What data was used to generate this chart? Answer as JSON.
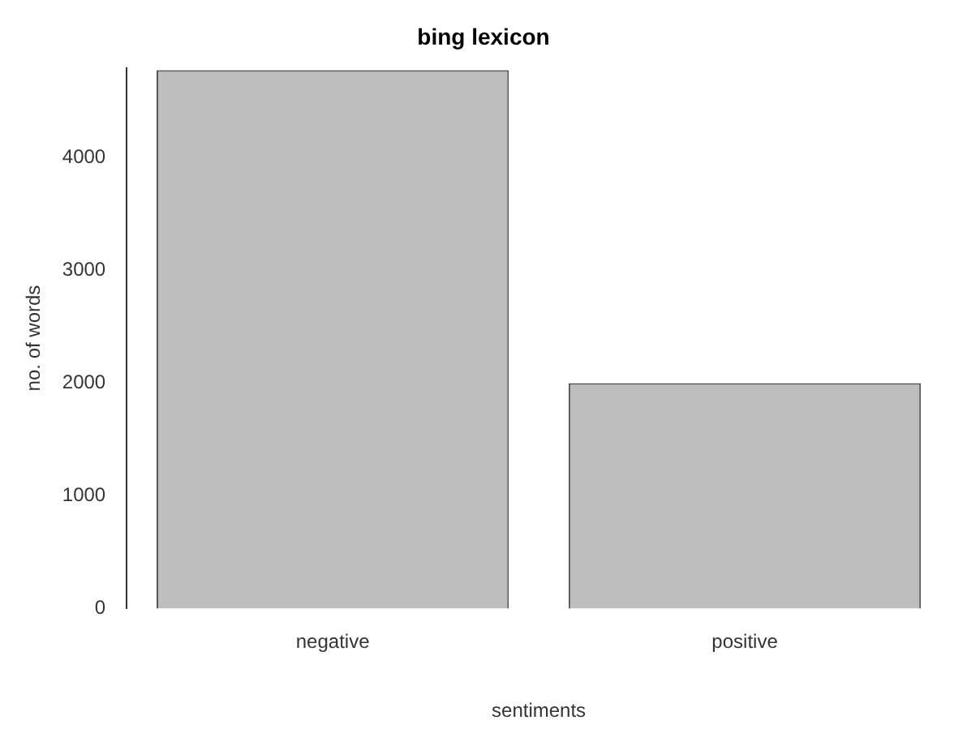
{
  "chart_data": {
    "type": "bar",
    "title": "bing lexicon",
    "xlabel": "sentiments",
    "ylabel": "no. of words",
    "categories": [
      "negative",
      "positive"
    ],
    "values": [
      4780,
      2000
    ],
    "color": "#bebebe",
    "ylim": [
      0,
      4800
    ],
    "yticks": [
      0,
      1000,
      2000,
      3000,
      4000
    ],
    "grid": false,
    "legend": false
  }
}
